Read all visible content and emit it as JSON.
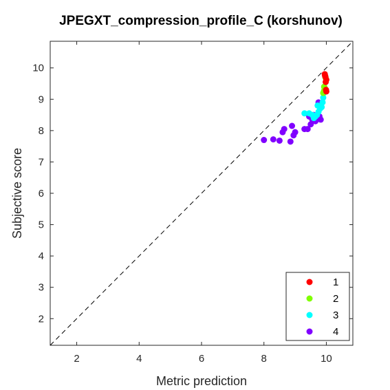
{
  "chart_data": {
    "type": "scatter",
    "title": "JPEGXT_compression_profile_C (korshunov)",
    "xlabel": "Metric prediction",
    "ylabel": "Subjective score",
    "xlim": [
      1.15,
      10.85
    ],
    "ylim": [
      1.15,
      10.85
    ],
    "xticks": [
      2,
      4,
      6,
      8,
      10
    ],
    "yticks": [
      2,
      3,
      4,
      5,
      6,
      7,
      8,
      9,
      10
    ],
    "grid": false,
    "legend_position": "bottom-right",
    "diagonal_reference": true,
    "series": [
      {
        "name": "1",
        "color": "#ff0000",
        "points": [
          [
            9.95,
            9.8
          ],
          [
            9.97,
            9.72
          ],
          [
            10.0,
            9.62
          ],
          [
            9.98,
            9.55
          ],
          [
            9.99,
            9.3
          ],
          [
            10.0,
            9.25
          ],
          [
            9.96,
            9.75
          ]
        ]
      },
      {
        "name": "2",
        "color": "#80ff00",
        "points": [
          [
            9.9,
            9.2
          ],
          [
            9.94,
            9.3
          ],
          [
            9.97,
            9.7
          ],
          [
            9.98,
            9.68
          ],
          [
            9.93,
            9.4
          ],
          [
            9.92,
            9.25
          ],
          [
            9.95,
            9.35
          ]
        ]
      },
      {
        "name": "3",
        "color": "#00ffff",
        "points": [
          [
            9.3,
            8.55
          ],
          [
            9.45,
            8.55
          ],
          [
            9.55,
            8.5
          ],
          [
            9.65,
            8.45
          ],
          [
            9.7,
            8.5
          ],
          [
            9.75,
            8.6
          ],
          [
            9.8,
            8.7
          ],
          [
            9.85,
            8.75
          ],
          [
            9.88,
            8.9
          ],
          [
            9.9,
            9.05
          ],
          [
            9.92,
            9.2
          ],
          [
            9.6,
            8.4
          ],
          [
            9.72,
            8.8
          ]
        ]
      },
      {
        "name": "4",
        "color": "#8000ff",
        "points": [
          [
            8.0,
            7.7
          ],
          [
            8.3,
            7.72
          ],
          [
            8.5,
            7.68
          ],
          [
            8.6,
            7.95
          ],
          [
            8.65,
            8.05
          ],
          [
            8.85,
            7.65
          ],
          [
            8.9,
            8.15
          ],
          [
            8.95,
            7.85
          ],
          [
            9.0,
            7.95
          ],
          [
            9.3,
            8.05
          ],
          [
            9.4,
            8.05
          ],
          [
            9.45,
            8.45
          ],
          [
            9.5,
            8.2
          ],
          [
            9.55,
            8.35
          ],
          [
            9.6,
            8.5
          ],
          [
            9.65,
            8.3
          ],
          [
            9.7,
            8.4
          ],
          [
            9.75,
            8.9
          ],
          [
            9.78,
            8.45
          ],
          [
            9.82,
            8.35
          ]
        ]
      }
    ]
  }
}
